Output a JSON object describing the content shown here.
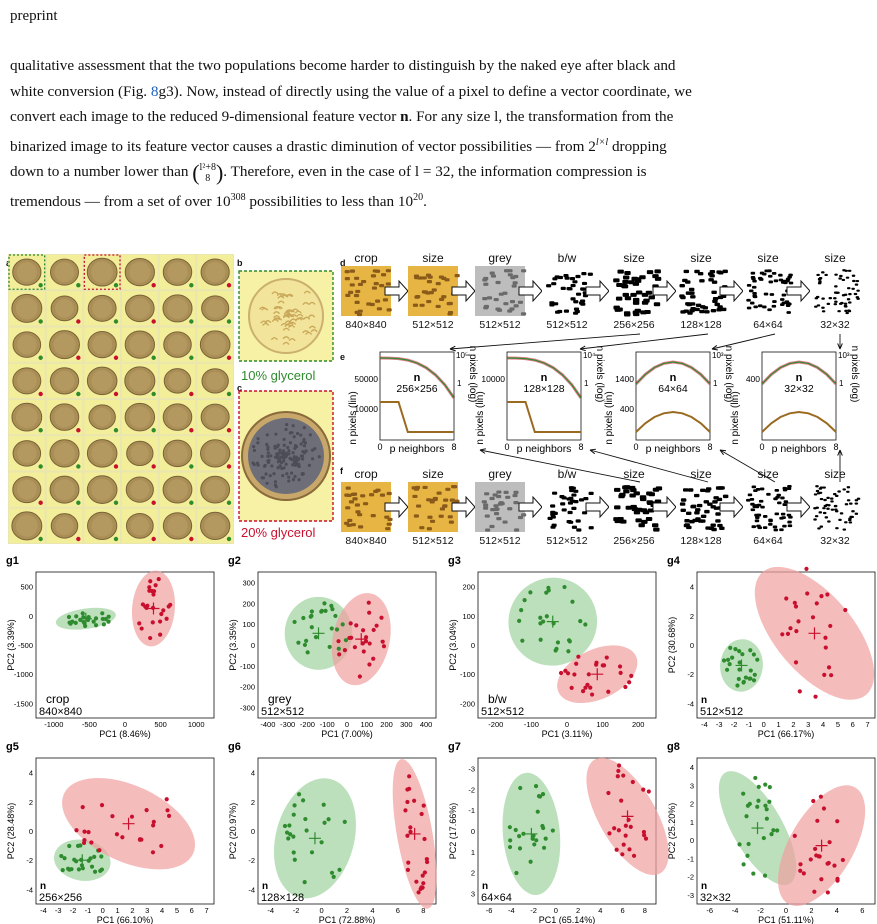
{
  "header": "preprint",
  "paragraph": {
    "line1": "qualitative assessment that the two populations become harder to distinguish by the naked eye after black and",
    "line2_pre": "white conversion (Fig. ",
    "line2_ref": "8",
    "line2_post": "g3). Now, instead of directly using the value of a pixel to define a vector coordinate, we",
    "line3_pre": "convert each image to the reduced 9-dimensional feature vector ",
    "line3_bold": "n",
    "line3_post": ". For any size l, the transformation from the",
    "line4_pre": "binarized image to its feature vector causes a drastic diminution of vector possibilities — from 2",
    "line4_sup": "l×l",
    "line4_post": " dropping",
    "line5_pre": "down to a number lower than ",
    "line5_binom_top": "l²+8",
    "line5_binom_bot": "8",
    "line5_post": ". Therefore, even in the case of l = 32, the information compression is",
    "line6_pre": "tremendous — from a set of over 10",
    "line6_sup1": "308",
    "line6_mid": " possibilities to less than 10",
    "line6_sup2": "20",
    "line6_post": "."
  },
  "figure": {
    "panel_labels": [
      "a",
      "b",
      "c",
      "d",
      "e",
      "f"
    ],
    "b_caption": "10% glycerol",
    "c_caption": "20% glycerol",
    "colors": {
      "green": "#2e8b2e",
      "red": "#c8102e",
      "tile": "#f3ee9a",
      "green_fill": "#9fd39f",
      "red_fill": "#f1a0a0"
    },
    "pipeline": {
      "steps": [
        "crop",
        "size",
        "grey",
        "b/w",
        "size",
        "size",
        "size",
        "size"
      ],
      "sizes": [
        "840×840",
        "512×512",
        "512×512",
        "512×512",
        "256×256",
        "128×128",
        "64×64",
        "32×32"
      ]
    },
    "histograms": [
      {
        "size": "256×256",
        "ylin_ticks": [
          "50000",
          "10000"
        ],
        "ylog_ticks": [
          "10⁵",
          "1"
        ]
      },
      {
        "size": "128×128",
        "ylin_ticks": [
          "10000"
        ],
        "ylog_ticks": [
          "10⁴",
          "1"
        ]
      },
      {
        "size": "64×64",
        "ylin_ticks": [
          "1400",
          "400"
        ],
        "ylog_ticks": [
          "10³",
          "1"
        ]
      },
      {
        "size": "32×32",
        "ylin_ticks": [
          "400"
        ],
        "ylog_ticks": [
          "10³",
          "1"
        ]
      }
    ],
    "hist_xlabel": "p neighbors",
    "hist_ylabel_lin": "n pixels (lin)",
    "hist_ylabel_log": "n pixels (log)",
    "hist_n": "n",
    "hist_xticks": [
      "0",
      "8"
    ],
    "pca_panels": [
      {
        "id": "g1",
        "xlabel": "PC1 (8.46%)",
        "ylabel": "PC2 (3.39%)",
        "tag1": "crop",
        "tag2": "840×840",
        "xticks": [
          "-1000",
          "-500",
          "0",
          "500",
          "1000"
        ],
        "yticks": [
          "500",
          "0",
          "-500",
          "-1000",
          "-1500"
        ]
      },
      {
        "id": "g2",
        "xlabel": "PC1 (7.00%)",
        "ylabel": "PC2 (3.35%)",
        "tag1": "grey",
        "tag2": "512×512",
        "xticks": [
          "-400",
          "-300",
          "-200",
          "-100",
          "0",
          "100",
          "200",
          "300",
          "400"
        ],
        "yticks": [
          "300",
          "200",
          "100",
          "0",
          "-100",
          "-200",
          "-300"
        ]
      },
      {
        "id": "g3",
        "xlabel": "PC1 (3.11%)",
        "ylabel": "PC2 (3.04%)",
        "tag1": "b/w",
        "tag2": "512×512",
        "xticks": [
          "-200",
          "-100",
          "0",
          "100",
          "200"
        ],
        "yticks": [
          "200",
          "100",
          "0",
          "-100",
          "-200"
        ]
      },
      {
        "id": "g4",
        "xlabel": "PC1 (66.17%)",
        "ylabel": "PC2 (30.68%)",
        "tag1": "n",
        "tag2": "512×512",
        "xticks": [
          "-4",
          "-3",
          "-2",
          "-1",
          "0",
          "1",
          "2",
          "3",
          "4",
          "5",
          "6",
          "7"
        ],
        "yticks": [
          "4",
          "2",
          "0",
          "-2",
          "-4"
        ]
      },
      {
        "id": "g5",
        "xlabel": "PC1 (66.10%)",
        "ylabel": "PC2 (28.48%)",
        "tag1": "n",
        "tag2": "256×256",
        "xticks": [
          "-4",
          "-3",
          "-2",
          "-1",
          "0",
          "1",
          "2",
          "3",
          "4",
          "5",
          "6",
          "7"
        ],
        "yticks": [
          "4",
          "2",
          "0",
          "-2",
          "-4"
        ]
      },
      {
        "id": "g6",
        "xlabel": "PC1 (72.88%)",
        "ylabel": "PC2 (20.97%)",
        "tag1": "n",
        "tag2": "128×128",
        "xticks": [
          "-4",
          "-2",
          "0",
          "2",
          "4",
          "6",
          "8"
        ],
        "yticks": [
          "4",
          "2",
          "0",
          "-2",
          "-4"
        ]
      },
      {
        "id": "g7",
        "xlabel": "PC1 (65.14%)",
        "ylabel": "PC2 (17.66%)",
        "tag1": "n",
        "tag2": "64×64",
        "xticks": [
          "-6",
          "-4",
          "-2",
          "0",
          "2",
          "4",
          "6",
          "8"
        ],
        "yticks": [
          "-3",
          "-2",
          "-1",
          "0",
          "1",
          "2",
          "3"
        ]
      },
      {
        "id": "g8",
        "xlabel": "PC1 (51.11%)",
        "ylabel": "PC2 (25.20%)",
        "tag1": "n",
        "tag2": "32×32",
        "xticks": [
          "-6",
          "-4",
          "-2",
          "0",
          "2",
          "4",
          "6"
        ],
        "yticks": [
          "4",
          "3",
          "2",
          "1",
          "0",
          "-1",
          "-2",
          "-3"
        ]
      }
    ]
  }
}
